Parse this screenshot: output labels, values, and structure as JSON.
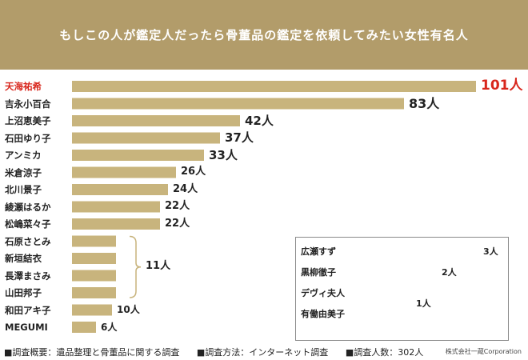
{
  "header": {
    "title": "もしこの人が鑑定人だったら骨董品の鑑定を依頼してみたい女性有名人"
  },
  "colors": {
    "bar": "#c8b47d",
    "bar_gray": "#c9c9c9",
    "highlight": "#d8261c",
    "banner": "#b29c6a"
  },
  "chart_data": {
    "type": "bar",
    "orientation": "horizontal",
    "unit": "人",
    "items": [
      {
        "label": "天海祐希",
        "value": 101,
        "value_label": "101人"
      },
      {
        "label": "吉永小百合",
        "value": 83,
        "value_label": "83人"
      },
      {
        "label": "上沼恵美子",
        "value": 42,
        "value_label": "42人"
      },
      {
        "label": "石田ゆり子",
        "value": 37,
        "value_label": "37人"
      },
      {
        "label": "アンミカ",
        "value": 33,
        "value_label": "33人"
      },
      {
        "label": "米倉涼子",
        "value": 26,
        "value_label": "26人"
      },
      {
        "label": "北川景子",
        "value": 24,
        "value_label": "24人"
      },
      {
        "label": "綾瀬はるか",
        "value": 22,
        "value_label": "22人"
      },
      {
        "label": "松嶋菜々子",
        "value": 22,
        "value_label": "22人"
      },
      {
        "label": "石原さとみ",
        "value": 11
      },
      {
        "label": "新垣結衣",
        "value": 11
      },
      {
        "label": "長澤まさみ",
        "value": 11
      },
      {
        "label": "山田邦子",
        "value": 11
      },
      {
        "label": "和田アキ子",
        "value": 10,
        "value_label": "10人"
      },
      {
        "label": "MEGUMI",
        "value": 6,
        "value_label": "6人"
      }
    ],
    "group_label": "11人",
    "inset": {
      "items": [
        {
          "label": "広瀬すず",
          "value": 3,
          "value_label": "3人"
        },
        {
          "label": "黒柳徹子",
          "value": 2,
          "value_label": "2人"
        },
        {
          "label": "デヴィ夫人",
          "value": 1
        },
        {
          "label": "有働由美子",
          "value": 1
        }
      ],
      "group_label": "1人"
    }
  },
  "footer": {
    "overview": "■調査概要：遺品整理と骨董品に関する調査",
    "method": "■調査方法：インターネット調査",
    "count": "■調査人数：302人",
    "company": "株式会社一蔵Corporation"
  }
}
